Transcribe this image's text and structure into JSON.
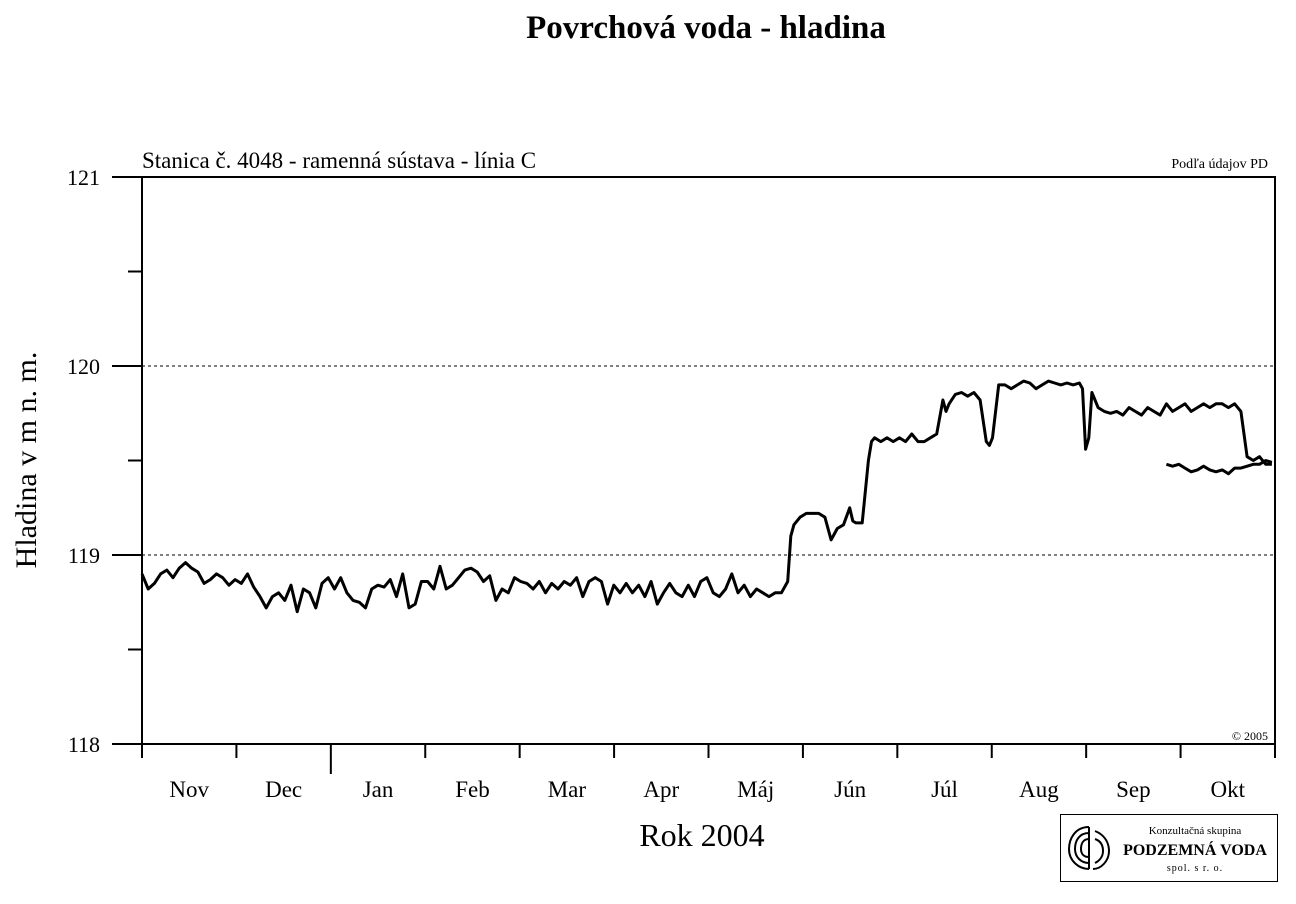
{
  "page": {
    "title": "Povrchová voda - hladina",
    "copyright": "© 2005",
    "source_note": "Podľa údajov PD"
  },
  "logo": {
    "line1": "Konzultačná skupina",
    "line2": "PODZEMNÁ VODA",
    "line3": "spol. s r. o."
  },
  "colors": {
    "line": "#000000",
    "grid": "#000000",
    "background": "#ffffff"
  },
  "chart_data": {
    "type": "line",
    "title": "Povrchová voda - hladina",
    "subtitle": "Stanica č. 4048 - ramenná sústava - línia C",
    "xlabel": "Rok 2004",
    "ylabel": "Hladina v m n. m.",
    "ylim": [
      118,
      121
    ],
    "yticks": [
      118,
      119,
      120,
      121
    ],
    "ygrid_dashed": [
      119,
      120
    ],
    "xlim": [
      0,
      365
    ],
    "months": [
      "Nov",
      "Dec",
      "Jan",
      "Feb",
      "Mar",
      "Apr",
      "Máj",
      "Jún",
      "Júl",
      "Aug",
      "Sep",
      "Okt"
    ],
    "x_unit": "days since 1 Nov 2003",
    "series": [
      {
        "segments": [
          [
            [
              0,
              118.9
            ],
            [
              2,
              118.82
            ],
            [
              4,
              118.85
            ],
            [
              6,
              118.9
            ],
            [
              8,
              118.92
            ],
            [
              10,
              118.88
            ],
            [
              12,
              118.93
            ],
            [
              14,
              118.96
            ],
            [
              16,
              118.93
            ],
            [
              18,
              118.91
            ],
            [
              20,
              118.85
            ],
            [
              22,
              118.87
            ],
            [
              24,
              118.9
            ],
            [
              26,
              118.88
            ],
            [
              28,
              118.84
            ],
            [
              30,
              118.87
            ],
            [
              32,
              118.85
            ],
            [
              34,
              118.9
            ],
            [
              36,
              118.83
            ],
            [
              38,
              118.78
            ],
            [
              40,
              118.72
            ],
            [
              42,
              118.78
            ],
            [
              44,
              118.8
            ],
            [
              46,
              118.76
            ],
            [
              48,
              118.84
            ],
            [
              50,
              118.7
            ],
            [
              52,
              118.82
            ],
            [
              54,
              118.8
            ],
            [
              56,
              118.72
            ],
            [
              58,
              118.85
            ],
            [
              60,
              118.88
            ],
            [
              62,
              118.82
            ],
            [
              64,
              118.88
            ],
            [
              66,
              118.8
            ],
            [
              68,
              118.76
            ],
            [
              70,
              118.75
            ],
            [
              72,
              118.72
            ],
            [
              74,
              118.82
            ],
            [
              76,
              118.84
            ],
            [
              78,
              118.83
            ],
            [
              80,
              118.87
            ],
            [
              82,
              118.78
            ],
            [
              84,
              118.9
            ],
            [
              86,
              118.72
            ],
            [
              88,
              118.74
            ],
            [
              90,
              118.86
            ],
            [
              92,
              118.86
            ],
            [
              94,
              118.82
            ],
            [
              96,
              118.94
            ],
            [
              98,
              118.82
            ],
            [
              100,
              118.84
            ],
            [
              102,
              118.88
            ],
            [
              104,
              118.92
            ],
            [
              106,
              118.93
            ],
            [
              108,
              118.91
            ],
            [
              110,
              118.86
            ],
            [
              112,
              118.89
            ],
            [
              114,
              118.76
            ],
            [
              116,
              118.82
            ],
            [
              118,
              118.8
            ],
            [
              120,
              118.88
            ],
            [
              122,
              118.86
            ],
            [
              124,
              118.85
            ],
            [
              126,
              118.82
            ],
            [
              128,
              118.86
            ],
            [
              130,
              118.8
            ],
            [
              132,
              118.85
            ],
            [
              134,
              118.82
            ],
            [
              136,
              118.86
            ],
            [
              138,
              118.84
            ],
            [
              140,
              118.88
            ],
            [
              142,
              118.78
            ],
            [
              144,
              118.86
            ],
            [
              146,
              118.88
            ],
            [
              148,
              118.86
            ],
            [
              150,
              118.74
            ],
            [
              152,
              118.84
            ],
            [
              154,
              118.8
            ],
            [
              156,
              118.85
            ],
            [
              158,
              118.8
            ],
            [
              160,
              118.84
            ],
            [
              162,
              118.78
            ],
            [
              164,
              118.86
            ],
            [
              166,
              118.74
            ],
            [
              168,
              118.8
            ],
            [
              170,
              118.85
            ],
            [
              172,
              118.8
            ],
            [
              174,
              118.78
            ],
            [
              176,
              118.84
            ],
            [
              178,
              118.78
            ],
            [
              180,
              118.86
            ],
            [
              182,
              118.88
            ],
            [
              184,
              118.8
            ],
            [
              186,
              118.78
            ],
            [
              188,
              118.82
            ],
            [
              190,
              118.9
            ],
            [
              192,
              118.8
            ],
            [
              194,
              118.84
            ],
            [
              196,
              118.78
            ],
            [
              198,
              118.82
            ],
            [
              200,
              118.8
            ],
            [
              202,
              118.78
            ],
            [
              204,
              118.8
            ],
            [
              206,
              118.8
            ],
            [
              208,
              118.86
            ],
            [
              209,
              119.1
            ],
            [
              210,
              119.16
            ],
            [
              212,
              119.2
            ],
            [
              214,
              119.22
            ],
            [
              216,
              119.22
            ],
            [
              218,
              119.22
            ],
            [
              220,
              119.2
            ],
            [
              222,
              119.08
            ],
            [
              224,
              119.14
            ],
            [
              226,
              119.16
            ],
            [
              228,
              119.25
            ],
            [
              229,
              119.18
            ],
            [
              230,
              119.17
            ],
            [
              232,
              119.17
            ],
            [
              234,
              119.5
            ],
            [
              235,
              119.6
            ],
            [
              236,
              119.62
            ],
            [
              238,
              119.6
            ],
            [
              240,
              119.62
            ],
            [
              242,
              119.6
            ],
            [
              244,
              119.62
            ],
            [
              246,
              119.6
            ],
            [
              248,
              119.64
            ],
            [
              250,
              119.6
            ],
            [
              252,
              119.6
            ],
            [
              254,
              119.62
            ],
            [
              256,
              119.64
            ],
            [
              258,
              119.82
            ],
            [
              259,
              119.76
            ],
            [
              260,
              119.8
            ],
            [
              262,
              119.85
            ],
            [
              264,
              119.86
            ],
            [
              266,
              119.84
            ],
            [
              268,
              119.86
            ],
            [
              270,
              119.82
            ],
            [
              272,
              119.6
            ],
            [
              273,
              119.58
            ],
            [
              274,
              119.62
            ],
            [
              276,
              119.9
            ],
            [
              278,
              119.9
            ],
            [
              280,
              119.88
            ],
            [
              282,
              119.9
            ],
            [
              284,
              119.92
            ],
            [
              286,
              119.91
            ],
            [
              288,
              119.88
            ],
            [
              290,
              119.9
            ],
            [
              292,
              119.92
            ],
            [
              294,
              119.91
            ],
            [
              296,
              119.9
            ],
            [
              298,
              119.91
            ],
            [
              300,
              119.9
            ],
            [
              302,
              119.91
            ],
            [
              303,
              119.88
            ],
            [
              304,
              119.56
            ],
            [
              305,
              119.62
            ],
            [
              306,
              119.86
            ],
            [
              307,
              119.82
            ],
            [
              308,
              119.78
            ],
            [
              310,
              119.76
            ],
            [
              312,
              119.75
            ],
            [
              314,
              119.76
            ],
            [
              316,
              119.74
            ],
            [
              318,
              119.78
            ],
            [
              320,
              119.76
            ],
            [
              322,
              119.74
            ],
            [
              324,
              119.78
            ],
            [
              326,
              119.76
            ],
            [
              328,
              119.74
            ],
            [
              330,
              119.8
            ],
            [
              332,
              119.76
            ],
            [
              334,
              119.78
            ],
            [
              336,
              119.8
            ],
            [
              338,
              119.76
            ],
            [
              340,
              119.78
            ],
            [
              342,
              119.8
            ],
            [
              344,
              119.78
            ],
            [
              346,
              119.8
            ],
            [
              348,
              119.8
            ],
            [
              350,
              119.78
            ],
            [
              352,
              119.8
            ],
            [
              354,
              119.76
            ],
            [
              356,
              119.52
            ],
            [
              358,
              119.5
            ],
            [
              360,
              119.52
            ],
            [
              362,
              119.48
            ],
            [
              364,
              119.48
            ]
          ],
          [
            [
              330,
              119.48
            ],
            [
              332,
              119.47
            ],
            [
              334,
              119.48
            ],
            [
              336,
              119.46
            ],
            [
              338,
              119.44
            ],
            [
              340,
              119.45
            ],
            [
              342,
              119.47
            ],
            [
              344,
              119.45
            ],
            [
              346,
              119.44
            ],
            [
              348,
              119.45
            ],
            [
              350,
              119.43
            ],
            [
              352,
              119.46
            ],
            [
              354,
              119.46
            ],
            [
              356,
              119.47
            ],
            [
              358,
              119.48
            ],
            [
              360,
              119.48
            ],
            [
              362,
              119.5
            ],
            [
              364,
              119.49
            ]
          ]
        ]
      }
    ]
  }
}
